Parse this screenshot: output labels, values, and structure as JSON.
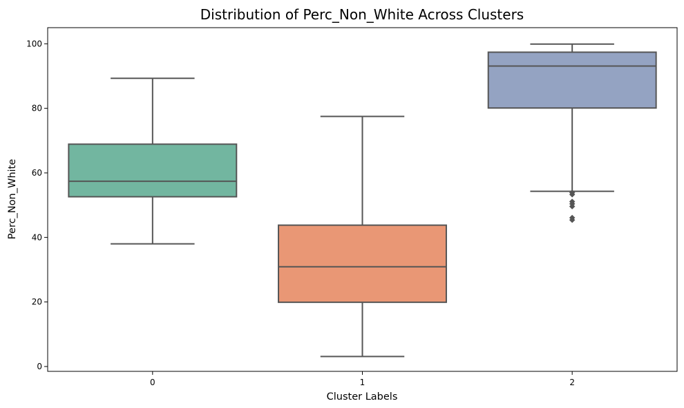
{
  "chart_data": {
    "type": "box",
    "title": "Distribution of Perc_Non_White Across Clusters",
    "xlabel": "Cluster Labels",
    "ylabel": "Perc_Non_White",
    "ylim": [
      -1.5,
      105
    ],
    "yticks": [
      0,
      20,
      40,
      60,
      80,
      100
    ],
    "grid": false,
    "legend": "none",
    "box_line_color": "#555555",
    "boxes": [
      {
        "category": "0",
        "color": "#72b6a0",
        "whisker_low": 38,
        "q1": 52.6,
        "median": 57.4,
        "q3": 68.9,
        "whisker_high": 89.3,
        "outliers": []
      },
      {
        "category": "1",
        "color": "#e99775",
        "whisker_low": 3.1,
        "q1": 19.9,
        "median": 30.9,
        "q3": 43.8,
        "whisker_high": 77.5,
        "outliers": []
      },
      {
        "category": "2",
        "color": "#94a3c2",
        "whisker_low": 54.3,
        "q1": 80.1,
        "median": 93.1,
        "q3": 97.4,
        "whisker_high": 99.9,
        "outliers": [
          53.9,
          53.3,
          51.1,
          50.4,
          49.6,
          46.1,
          45.4
        ]
      }
    ]
  }
}
